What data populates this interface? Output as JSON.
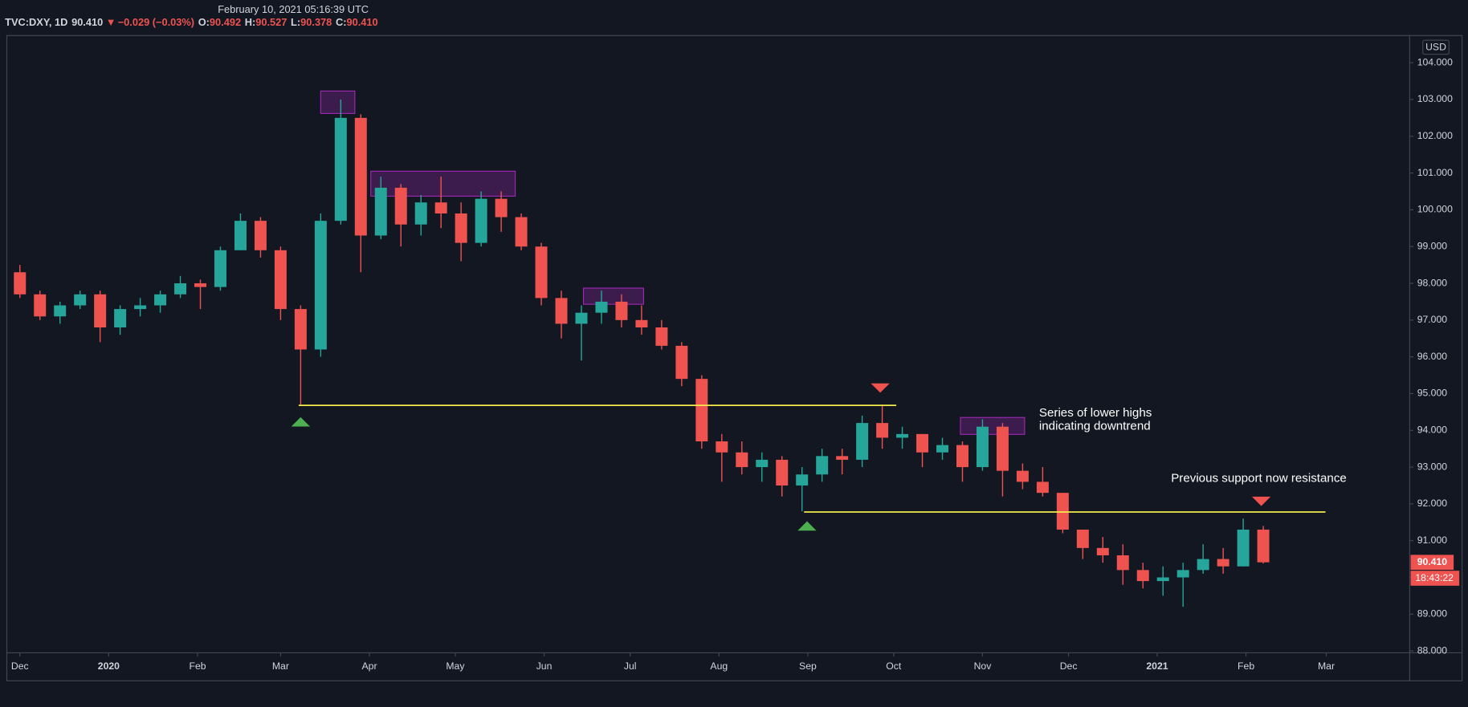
{
  "header": {
    "timestamp": "February 10, 2021 05:16:39 UTC"
  },
  "chart_data": {
    "type": "candlestick",
    "legend": {
      "symbol": "TVC:DXY, 1D",
      "last": {
        "value": 90.41,
        "label": "90.410"
      },
      "change": "−0.029 (−0.03%)",
      "fields": [
        {
          "key": "O:",
          "value": 90.492
        },
        {
          "key": "H:",
          "value": 90.527
        },
        {
          "key": "L:",
          "value": 90.378
        },
        {
          "key": "C:",
          "value": 90.41,
          "label": "90.410"
        }
      ]
    },
    "currency": "USD",
    "countdown": "18:43:22",
    "up_color": "#26a69a",
    "down_color": "#ef5350",
    "x": [
      0,
      1,
      2,
      3,
      4,
      5,
      6,
      7,
      8,
      9,
      10,
      11,
      12,
      13,
      14,
      15,
      16,
      17,
      18,
      19,
      20,
      21,
      22,
      23,
      24,
      25,
      26,
      27,
      28,
      29,
      30,
      31,
      32,
      33,
      34,
      35,
      36,
      37,
      38,
      39,
      40,
      41,
      42,
      43,
      44,
      45,
      46,
      47,
      48,
      49,
      50,
      51,
      52,
      53,
      54,
      55,
      56,
      57,
      58,
      59,
      60,
      61,
      62
    ],
    "open": [
      98.3,
      97.7,
      97.1,
      97.4,
      97.7,
      96.8,
      97.3,
      97.4,
      97.7,
      98.0,
      97.9,
      98.9,
      99.7,
      98.9,
      97.3,
      96.2,
      99.7,
      102.5,
      99.3,
      100.6,
      99.6,
      100.2,
      99.9,
      99.1,
      100.3,
      99.8,
      99.0,
      97.6,
      96.9,
      97.2,
      97.5,
      97.0,
      96.8,
      96.3,
      95.4,
      93.7,
      93.4,
      93.0,
      93.2,
      92.5,
      92.8,
      93.3,
      93.2,
      94.2,
      93.8,
      93.9,
      93.4,
      93.6,
      93.0,
      94.1,
      92.9,
      92.6,
      92.3,
      91.3,
      90.8,
      90.6,
      90.2,
      89.9,
      90.0,
      90.2,
      90.5,
      90.3,
      91.3
    ],
    "high": [
      98.5,
      97.8,
      97.5,
      97.8,
      97.8,
      97.4,
      97.6,
      97.8,
      98.2,
      98.1,
      99.0,
      99.9,
      99.8,
      99.0,
      97.4,
      99.9,
      103.0,
      102.6,
      100.9,
      100.7,
      100.4,
      100.9,
      100.2,
      100.5,
      100.5,
      99.9,
      99.1,
      97.8,
      97.4,
      97.8,
      97.7,
      97.4,
      97.0,
      96.4,
      95.5,
      93.9,
      93.7,
      93.4,
      93.3,
      93.0,
      93.5,
      93.5,
      94.4,
      94.7,
      94.1,
      93.9,
      93.8,
      93.7,
      94.3,
      94.2,
      93.1,
      93.0,
      92.3,
      91.3,
      91.1,
      90.9,
      90.4,
      90.3,
      90.4,
      90.9,
      90.8,
      91.6,
      91.4
    ],
    "low": [
      97.6,
      97.0,
      96.9,
      97.3,
      96.4,
      96.6,
      97.1,
      97.2,
      97.6,
      97.3,
      97.8,
      98.9,
      98.7,
      97.0,
      94.7,
      96.0,
      99.6,
      98.3,
      99.2,
      99.0,
      99.3,
      99.5,
      98.6,
      99.0,
      99.4,
      98.9,
      97.4,
      96.5,
      95.9,
      96.9,
      96.8,
      96.6,
      96.2,
      95.2,
      93.5,
      92.6,
      92.8,
      92.6,
      92.2,
      91.8,
      92.6,
      92.8,
      93.0,
      93.5,
      93.5,
      93.0,
      93.2,
      92.6,
      92.9,
      92.2,
      92.4,
      92.2,
      91.2,
      90.5,
      90.4,
      89.8,
      89.7,
      89.5,
      89.2,
      90.1,
      90.1,
      90.3,
      90.378
    ],
    "close": [
      97.7,
      97.1,
      97.4,
      97.7,
      96.8,
      97.3,
      97.4,
      97.7,
      98.0,
      97.9,
      98.9,
      99.7,
      98.9,
      97.3,
      96.2,
      99.7,
      102.5,
      99.3,
      100.6,
      99.6,
      100.2,
      99.9,
      99.1,
      100.3,
      99.8,
      99.0,
      97.6,
      96.9,
      97.2,
      97.5,
      97.0,
      96.8,
      96.3,
      95.4,
      93.7,
      93.4,
      93.0,
      93.2,
      92.5,
      92.8,
      93.3,
      93.2,
      94.2,
      93.8,
      93.9,
      93.4,
      93.6,
      93.0,
      94.1,
      92.9,
      92.6,
      92.3,
      91.3,
      90.8,
      90.6,
      90.2,
      89.9,
      90.0,
      90.2,
      90.5,
      90.3,
      91.3,
      90.41
    ],
    "xlim": [
      -0.65,
      69.3
    ],
    "xticks": [
      {
        "value": 0,
        "label": "Dec"
      },
      {
        "value": 4.43,
        "label": "2020"
      },
      {
        "value": 8.86,
        "label": "Feb"
      },
      {
        "value": 13,
        "label": "Mar"
      },
      {
        "value": 17.43,
        "label": "Apr"
      },
      {
        "value": 21.71,
        "label": "May"
      },
      {
        "value": 26.14,
        "label": "Jun"
      },
      {
        "value": 30.43,
        "label": "Jul"
      },
      {
        "value": 34.86,
        "label": "Aug"
      },
      {
        "value": 39.29,
        "label": "Sep"
      },
      {
        "value": 43.57,
        "label": "Oct"
      },
      {
        "value": 48,
        "label": "Nov"
      },
      {
        "value": 52.29,
        "label": "Dec"
      },
      {
        "value": 56.71,
        "label": "2021"
      },
      {
        "value": 61.14,
        "label": "Feb"
      },
      {
        "value": 65.14,
        "label": "Mar"
      }
    ],
    "ylim": [
      87.95,
      104.74
    ],
    "yticks": [
      {
        "value": 88,
        "label": "88.000"
      },
      {
        "value": 89,
        "label": "89.000"
      },
      {
        "value": 90,
        "label": "90.000"
      },
      {
        "value": 91,
        "label": "91.000"
      },
      {
        "value": 92,
        "label": "92.000"
      },
      {
        "value": 93,
        "label": "93.000"
      },
      {
        "value": 94,
        "label": "94.000"
      },
      {
        "value": 95,
        "label": "95.000"
      },
      {
        "value": 96,
        "label": "96.000"
      },
      {
        "value": 97,
        "label": "97.000"
      },
      {
        "value": 98,
        "label": "98.000"
      },
      {
        "value": 99,
        "label": "99.000"
      },
      {
        "value": 100,
        "label": "100.000"
      },
      {
        "value": 101,
        "label": "101.000"
      },
      {
        "value": 102,
        "label": "102.000"
      },
      {
        "value": 103,
        "label": "103.000"
      },
      {
        "value": 104,
        "label": "104.000"
      }
    ],
    "levels": [
      {
        "y": 94.68,
        "x": [
          13.9,
          43.7
        ],
        "color": "#f5eb4a"
      },
      {
        "y": 91.78,
        "x": [
          39.1,
          65.1
        ],
        "color": "#f5eb4a"
      }
    ],
    "boxes": [
      {
        "x": [
          15.0,
          16.7
        ],
        "y": [
          102.62,
          103.23
        ]
      },
      {
        "x": [
          17.5,
          24.7
        ],
        "y": [
          100.37,
          101.05
        ]
      },
      {
        "x": [
          28.1,
          31.1
        ],
        "y": [
          97.43,
          97.87
        ]
      },
      {
        "x": [
          46.9,
          50.1
        ],
        "y": [
          93.89,
          94.35
        ]
      }
    ],
    "box_color": "#9c27b0",
    "markers": [
      {
        "x": 14.0,
        "y": 94.23,
        "dir": "up"
      },
      {
        "x": 39.25,
        "y": 91.4,
        "dir": "up"
      },
      {
        "x": 42.9,
        "y": 95.15,
        "dir": "down"
      },
      {
        "x": 61.9,
        "y": 92.07,
        "dir": "down"
      }
    ],
    "notes": [
      {
        "lines": [
          "Series of lower highs",
          "indicating downtrend"
        ]
      },
      {
        "lines": [
          "Previous support now resistance"
        ]
      }
    ]
  }
}
